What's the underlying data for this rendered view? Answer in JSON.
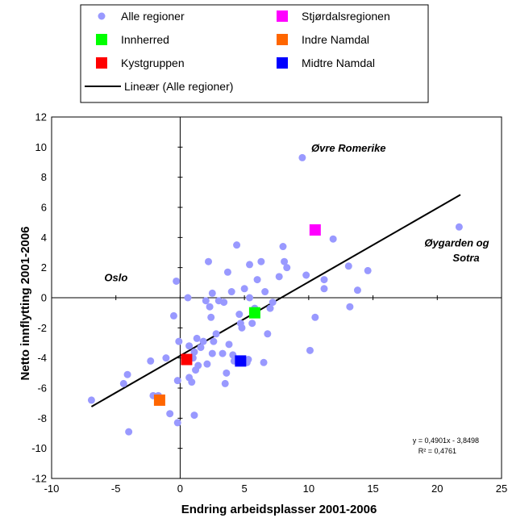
{
  "chart_data": {
    "type": "scatter",
    "xlabel": "Endring arbeidsplasser 2001-2006",
    "ylabel": "Netto innflytting 2001-2006",
    "xlim": [
      -10,
      25
    ],
    "ylim": [
      -12,
      12
    ],
    "x_ticks": [
      "-10",
      "-5",
      "0",
      "5",
      "10",
      "15",
      "20",
      "25"
    ],
    "y_ticks": [
      "12",
      "10",
      "8",
      "6",
      "4",
      "2",
      "0",
      "-2",
      "-4",
      "-6",
      "-8",
      "-10",
      "-12"
    ],
    "colors": {
      "all_regions": "#9999ff",
      "innherred": "#00ff00",
      "kystgruppen": "#ff0000",
      "stjordal": "#ff00ff",
      "indre_namdal": "#ff6600",
      "midtre_namdal": "#0000ff",
      "trend": "#000000"
    },
    "legend": [
      {
        "label": "Alle regioner",
        "key": "all_regions",
        "marker": "circle"
      },
      {
        "label": "Stjørdalsregionen",
        "key": "stjordal",
        "marker": "square"
      },
      {
        "label": "Innherred",
        "key": "innherred",
        "marker": "square"
      },
      {
        "label": "Indre Namdal",
        "key": "indre_namdal",
        "marker": "square"
      },
      {
        "label": "Kystgruppen",
        "key": "kystgruppen",
        "marker": "square"
      },
      {
        "label": "Midtre Namdal",
        "key": "midtre_namdal",
        "marker": "square"
      },
      {
        "label": "Lineær (Alle regioner)",
        "key": "trend",
        "marker": "line"
      }
    ],
    "series": [
      {
        "name": "Alle regioner",
        "marker": "circle",
        "points": [
          [
            -6.9,
            -6.8
          ],
          [
            -4.4,
            -5.7
          ],
          [
            -4.1,
            -5.1
          ],
          [
            -4.0,
            -8.9
          ],
          [
            -2.3,
            -4.2
          ],
          [
            -2.1,
            -6.5
          ],
          [
            -1.7,
            -6.5
          ],
          [
            -1.1,
            -4.0
          ],
          [
            -0.8,
            -7.7
          ],
          [
            -0.5,
            -1.2
          ],
          [
            -0.3,
            1.1
          ],
          [
            -0.2,
            -5.5
          ],
          [
            -0.1,
            -2.9
          ],
          [
            -0.2,
            -8.3
          ],
          [
            0.4,
            -4.0
          ],
          [
            0.6,
            0.0
          ],
          [
            0.7,
            -3.2
          ],
          [
            0.7,
            -5.3
          ],
          [
            0.9,
            -5.6
          ],
          [
            1.0,
            -4.0
          ],
          [
            1.1,
            -3.6
          ],
          [
            1.2,
            -4.8
          ],
          [
            1.3,
            -2.7
          ],
          [
            1.1,
            -7.8
          ],
          [
            1.4,
            -4.5
          ],
          [
            1.6,
            -3.3
          ],
          [
            1.8,
            -2.9
          ],
          [
            2.0,
            -0.2
          ],
          [
            2.1,
            -4.4
          ],
          [
            2.2,
            2.4
          ],
          [
            2.3,
            -0.6
          ],
          [
            2.4,
            -1.3
          ],
          [
            2.5,
            0.3
          ],
          [
            2.5,
            -3.7
          ],
          [
            2.6,
            -2.9
          ],
          [
            2.8,
            -2.4
          ],
          [
            3.0,
            -0.2
          ],
          [
            3.3,
            -3.7
          ],
          [
            3.4,
            -0.3
          ],
          [
            3.5,
            -5.7
          ],
          [
            3.6,
            -5.0
          ],
          [
            3.7,
            1.7
          ],
          [
            3.8,
            -3.1
          ],
          [
            4.0,
            0.4
          ],
          [
            4.1,
            -3.8
          ],
          [
            4.2,
            -4.2
          ],
          [
            4.4,
            3.5
          ],
          [
            4.6,
            -1.1
          ],
          [
            4.7,
            -1.7
          ],
          [
            4.8,
            -2.0
          ],
          [
            5.0,
            0.6
          ],
          [
            5.2,
            -4.3
          ],
          [
            5.3,
            -4.1
          ],
          [
            5.4,
            2.2
          ],
          [
            5.4,
            0.0
          ],
          [
            5.6,
            -1.7
          ],
          [
            5.8,
            -0.7
          ],
          [
            6.0,
            1.2
          ],
          [
            6.3,
            2.4
          ],
          [
            6.5,
            -4.3
          ],
          [
            6.6,
            0.4
          ],
          [
            6.8,
            -2.4
          ],
          [
            7.0,
            -0.7
          ],
          [
            7.2,
            -0.3
          ],
          [
            7.7,
            1.4
          ],
          [
            8.0,
            3.4
          ],
          [
            8.1,
            2.4
          ],
          [
            8.3,
            2.0
          ],
          [
            9.5,
            9.3
          ],
          [
            9.8,
            1.5
          ],
          [
            10.1,
            -3.5
          ],
          [
            10.5,
            -1.3
          ],
          [
            11.2,
            0.6
          ],
          [
            11.2,
            1.2
          ],
          [
            11.9,
            3.9
          ],
          [
            13.1,
            2.1
          ],
          [
            13.2,
            -0.6
          ],
          [
            13.8,
            0.5
          ],
          [
            14.6,
            1.8
          ],
          [
            21.7,
            4.7
          ]
        ]
      },
      {
        "name": "Innherred",
        "marker": "square",
        "points": [
          [
            5.8,
            -1.0
          ]
        ]
      },
      {
        "name": "Kystgruppen",
        "marker": "square",
        "points": [
          [
            0.5,
            -4.1
          ]
        ]
      },
      {
        "name": "Stjørdalsregionen",
        "marker": "square",
        "points": [
          [
            10.5,
            4.5
          ]
        ]
      },
      {
        "name": "Indre Namdal",
        "marker": "square",
        "points": [
          [
            -1.6,
            -6.8
          ]
        ]
      },
      {
        "name": "Midtre Namdal",
        "marker": "square",
        "points": [
          [
            4.7,
            -4.2
          ]
        ]
      }
    ],
    "trendline": {
      "name": "Lineær (Alle regioner)",
      "slope": 0.4901,
      "intercept": -3.8498,
      "x_range": [
        -6.9,
        21.8
      ],
      "equation": "y = 0,4901x - 3,8498",
      "r2": "R² = 0,4761"
    },
    "annotations": [
      {
        "text": "Øvre Romerike",
        "x": 10.2,
        "y": 9.7,
        "anchor": "start"
      },
      {
        "text": "Øygarden og",
        "x": 19.0,
        "y": 3.4,
        "anchor": "start"
      },
      {
        "text": "Sotra",
        "x": 21.2,
        "y": 2.4,
        "anchor": "start"
      },
      {
        "text": "Oslo",
        "x": -5.9,
        "y": 1.1,
        "anchor": "start"
      }
    ]
  }
}
